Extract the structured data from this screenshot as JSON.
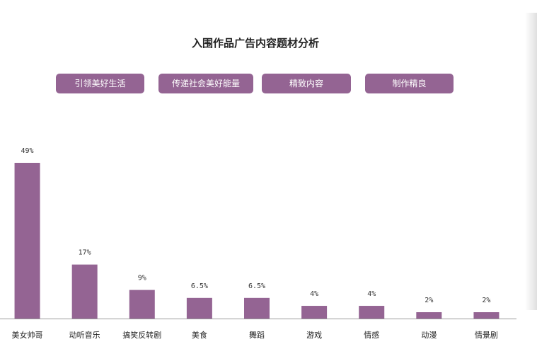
{
  "chart_data": {
    "type": "bar",
    "title": "入围作品广告内容题材分析",
    "categories": [
      "美女帅哥",
      "动听音乐",
      "搞笑反转剧",
      "美食",
      "舞蹈",
      "游戏",
      "情感",
      "动漫",
      "情景剧"
    ],
    "values": [
      49,
      17,
      9,
      6.5,
      6.5,
      4,
      4,
      2,
      2
    ],
    "value_labels": [
      "49%",
      "17%",
      "9%",
      "6.5%",
      "6.5%",
      "4%",
      "4%",
      "2%",
      "2%"
    ],
    "ylim": [
      0,
      49
    ],
    "grid": false,
    "bar_color": "#946493"
  },
  "tags": [
    {
      "label": "引领美好生活"
    },
    {
      "label": "传递社会美好能量"
    },
    {
      "label": "精致内容"
    },
    {
      "label": "制作精良"
    }
  ],
  "colors": {
    "tag_bg": "#946493",
    "baseline": "#9a9a9a"
  }
}
